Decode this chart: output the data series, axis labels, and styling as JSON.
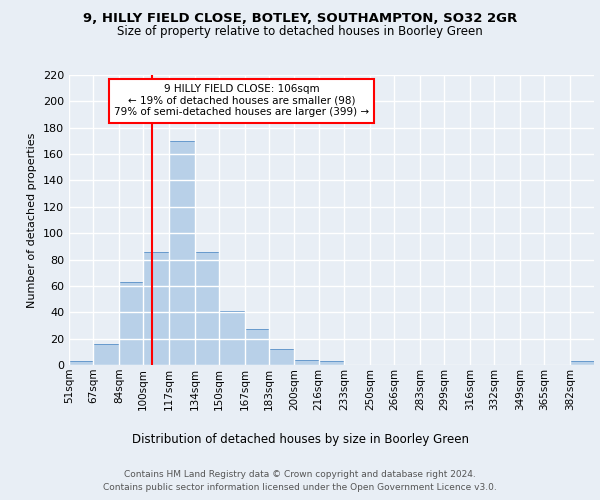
{
  "title1": "9, HILLY FIELD CLOSE, BOTLEY, SOUTHAMPTON, SO32 2GR",
  "title2": "Size of property relative to detached houses in Boorley Green",
  "xlabel": "Distribution of detached houses by size in Boorley Green",
  "ylabel": "Number of detached properties",
  "bin_labels": [
    "51sqm",
    "67sqm",
    "84sqm",
    "100sqm",
    "117sqm",
    "134sqm",
    "150sqm",
    "167sqm",
    "183sqm",
    "200sqm",
    "216sqm",
    "233sqm",
    "250sqm",
    "266sqm",
    "283sqm",
    "299sqm",
    "316sqm",
    "332sqm",
    "349sqm",
    "365sqm",
    "382sqm"
  ],
  "bar_values": [
    3,
    16,
    63,
    86,
    170,
    86,
    41,
    27,
    12,
    4,
    3,
    0,
    0,
    0,
    0,
    0,
    0,
    0,
    0,
    0,
    3
  ],
  "bar_color": "#b8d0e8",
  "bar_edge_color": "#6699cc",
  "bin_edges": [
    51,
    67,
    84,
    100,
    117,
    134,
    150,
    167,
    183,
    200,
    216,
    233,
    250,
    266,
    283,
    299,
    316,
    332,
    349,
    365,
    382,
    398
  ],
  "vline_x": 106,
  "annotation_text": "9 HILLY FIELD CLOSE: 106sqm\n← 19% of detached houses are smaller (98)\n79% of semi-detached houses are larger (399) →",
  "annotation_box_color": "white",
  "annotation_box_edge": "red",
  "footnote1": "Contains HM Land Registry data © Crown copyright and database right 2024.",
  "footnote2": "Contains public sector information licensed under the Open Government Licence v3.0.",
  "ylim": [
    0,
    220
  ],
  "yticks": [
    0,
    20,
    40,
    60,
    80,
    100,
    120,
    140,
    160,
    180,
    200,
    220
  ],
  "bg_color": "#e8eef5",
  "plot_bg_color": "#e8eef5",
  "grid_color": "white",
  "vline_color": "red"
}
